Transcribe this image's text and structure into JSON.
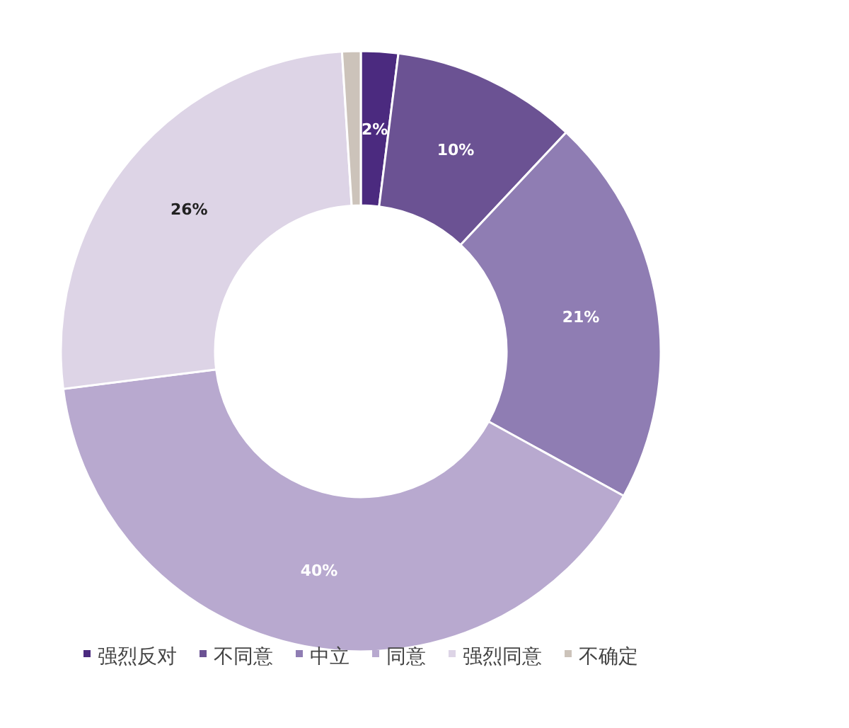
{
  "chart_data": {
    "type": "donut",
    "categories": [
      "强烈反对",
      "不同意",
      "中立",
      "同意",
      "强烈同意",
      "不确定"
    ],
    "values": [
      2,
      10,
      21,
      40,
      26,
      1
    ],
    "value_labels": [
      "2%",
      "10%",
      "21%",
      "40%",
      "26%",
      null
    ],
    "colors": [
      "#4b2a7f",
      "#6b5293",
      "#8f7db3",
      "#b8a9cf",
      "#ddd4e6",
      "#ccc3ba"
    ],
    "legend": "bottom"
  }
}
